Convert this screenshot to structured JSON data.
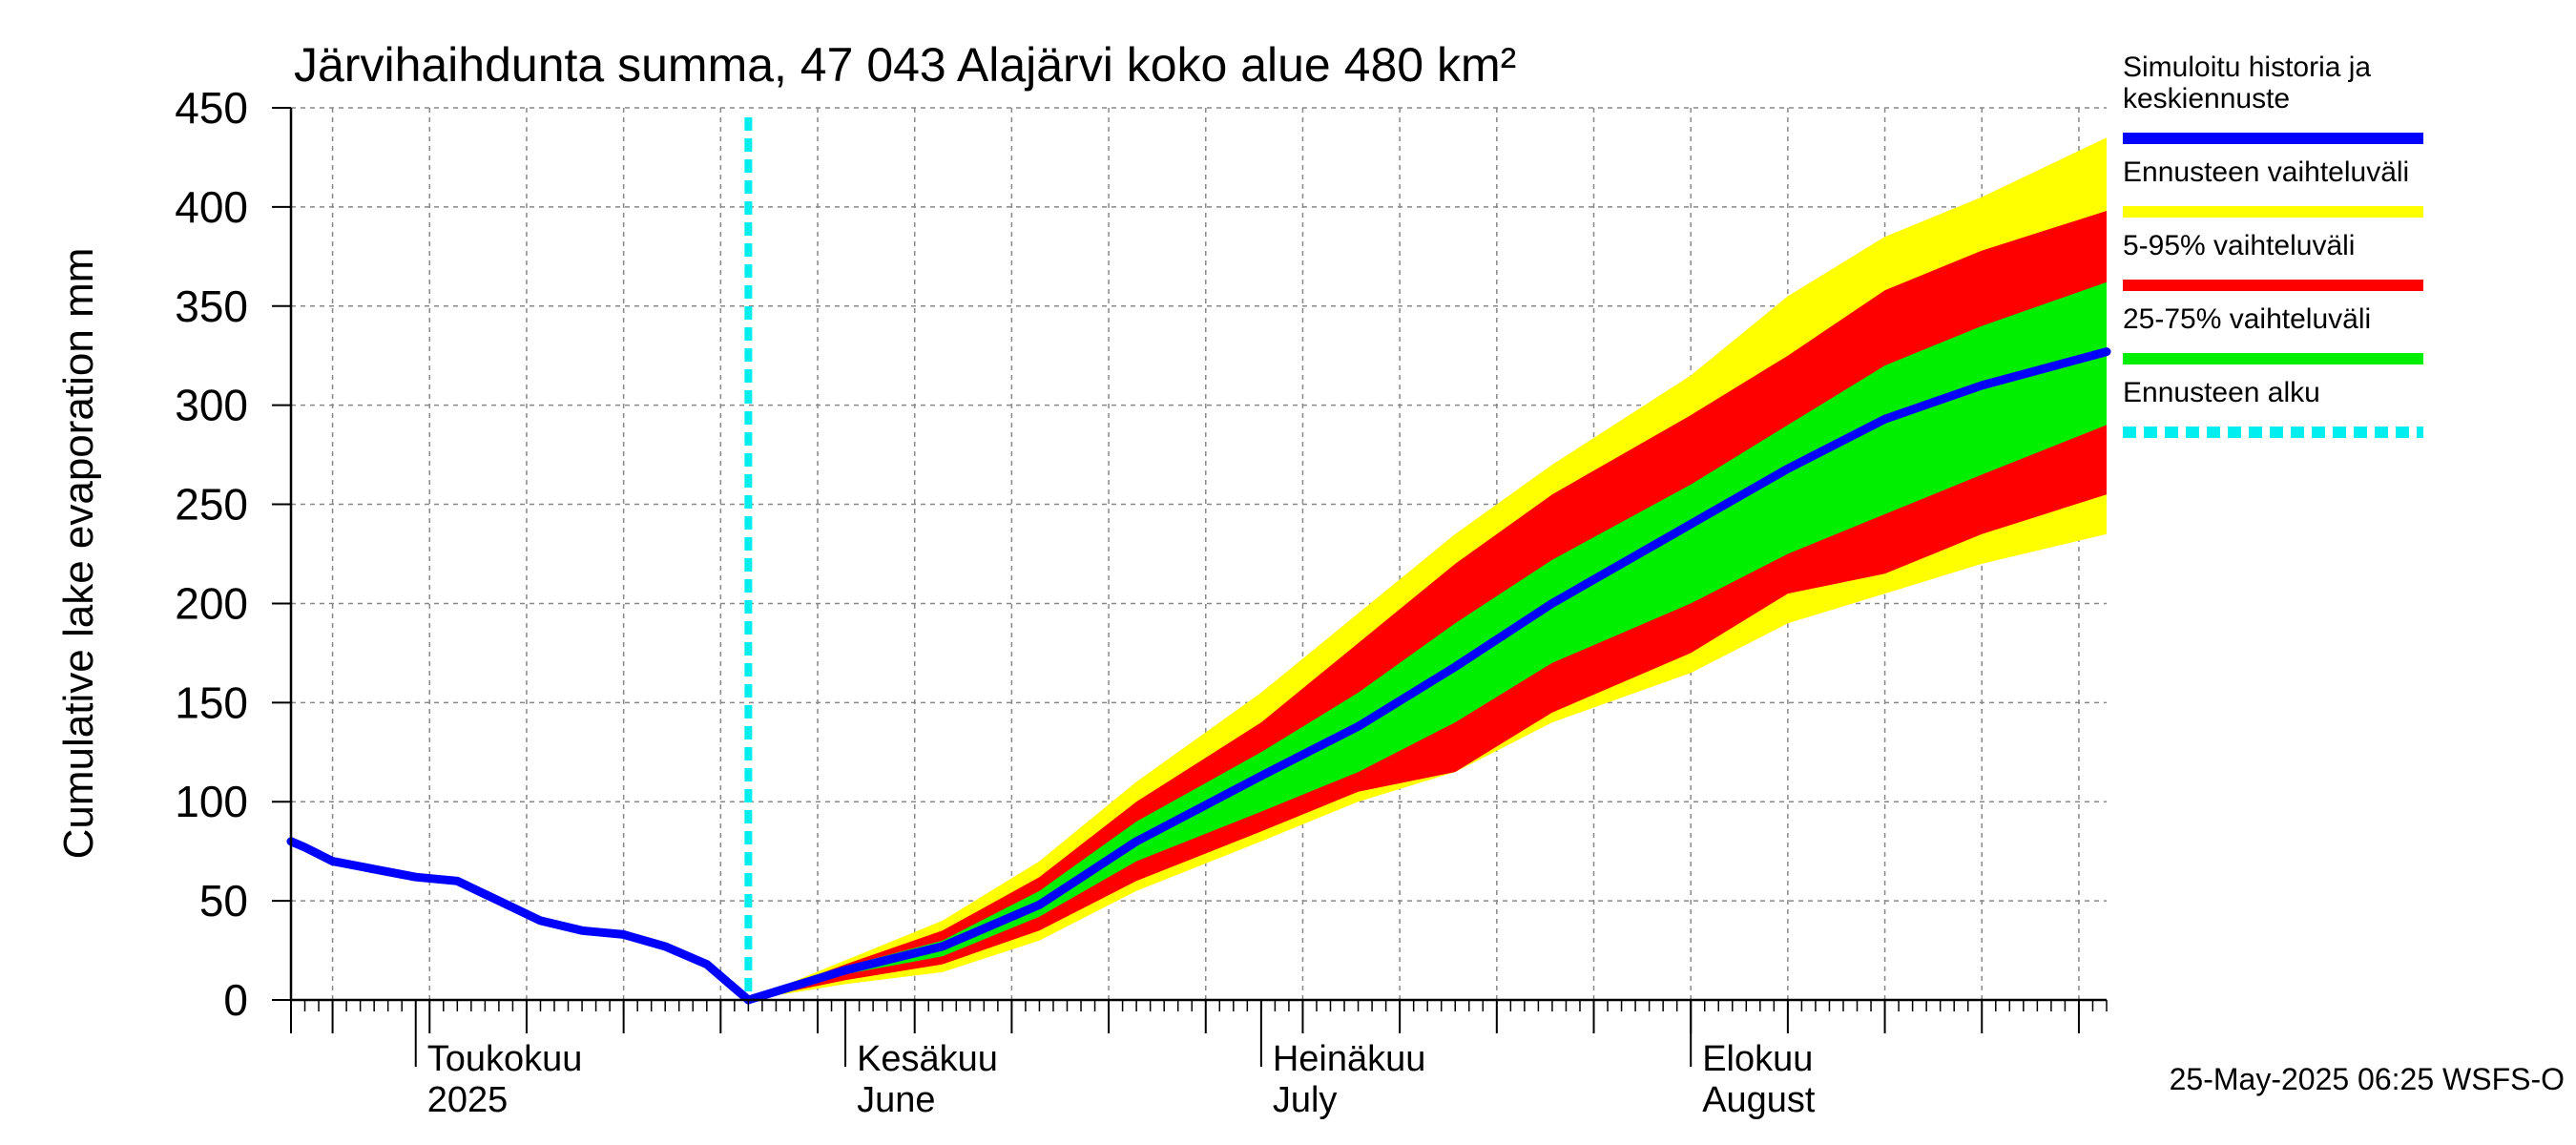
{
  "chart_data": {
    "type": "area",
    "title": "Järvihaihdunta summa, 47 043 Alajärvi koko alue 480 km²",
    "ylabel": "Cumulative lake evaporation   mm",
    "ylim": [
      0,
      450
    ],
    "y_ticks": [
      "0",
      "50",
      "100",
      "150",
      "200",
      "250",
      "300",
      "350",
      "400",
      "450"
    ],
    "x_range": [
      "2025-04-22",
      "2025-08-31"
    ],
    "x_month_labels": [
      {
        "date": "2025-05-01",
        "line1": "Toukokuu",
        "line2": "2025"
      },
      {
        "date": "2025-06-01",
        "line1": "Kesäkuu",
        "line2": "June"
      },
      {
        "date": "2025-07-01",
        "line1": "Heinäkuu",
        "line2": "July"
      },
      {
        "date": "2025-08-01",
        "line1": "Elokuu",
        "line2": "August"
      }
    ],
    "grid": true,
    "forecast_start": "2025-05-25",
    "legend_placement": "right",
    "legend": [
      {
        "key": "history",
        "label_lines": [
          "Simuloitu historia ja",
          "keskiennuste"
        ],
        "color": "#0000ff",
        "style": "solid"
      },
      {
        "key": "range_full",
        "label_lines": [
          "Ennusteen vaihteluväli"
        ],
        "color": "#ffff00",
        "style": "solid"
      },
      {
        "key": "range_5_95",
        "label_lines": [
          "5-95% vaihteluväli"
        ],
        "color": "#ff0000",
        "style": "solid"
      },
      {
        "key": "range_25_75",
        "label_lines": [
          "25-75% vaihteluväli"
        ],
        "color": "#00ee00",
        "style": "solid"
      },
      {
        "key": "forecast_start",
        "label_lines": [
          "Ennusteen alku"
        ],
        "color": "#00eeee",
        "style": "dashed"
      }
    ],
    "series": {
      "history": {
        "x": [
          "2025-04-22",
          "2025-04-23",
          "2025-04-25",
          "2025-04-28",
          "2025-05-01",
          "2025-05-04",
          "2025-05-07",
          "2025-05-10",
          "2025-05-13",
          "2025-05-16",
          "2025-05-19",
          "2025-05-22",
          "2025-05-25"
        ],
        "y": [
          80,
          77,
          70,
          66,
          62,
          60,
          50,
          40,
          35,
          33,
          27,
          18,
          0
        ]
      },
      "median": {
        "x": [
          "2025-05-25",
          "2025-06-01",
          "2025-06-08",
          "2025-06-15",
          "2025-06-22",
          "2025-07-01",
          "2025-07-08",
          "2025-07-15",
          "2025-07-22",
          "2025-08-01",
          "2025-08-08",
          "2025-08-15",
          "2025-08-22",
          "2025-08-31"
        ],
        "y": [
          0,
          15,
          27,
          48,
          80,
          113,
          138,
          168,
          200,
          240,
          268,
          293,
          310,
          327
        ]
      },
      "band_25_75": {
        "x": [
          "2025-05-25",
          "2025-06-01",
          "2025-06-08",
          "2025-06-15",
          "2025-06-22",
          "2025-07-01",
          "2025-07-08",
          "2025-07-15",
          "2025-07-22",
          "2025-08-01",
          "2025-08-08",
          "2025-08-15",
          "2025-08-22",
          "2025-08-31"
        ],
        "lower": [
          0,
          13,
          22,
          42,
          70,
          95,
          115,
          140,
          170,
          200,
          225,
          245,
          265,
          290
        ],
        "upper": [
          0,
          17,
          30,
          55,
          90,
          125,
          155,
          190,
          222,
          260,
          290,
          320,
          340,
          362
        ]
      },
      "band_5_95": {
        "x": [
          "2025-05-25",
          "2025-06-01",
          "2025-06-08",
          "2025-06-15",
          "2025-06-22",
          "2025-07-01",
          "2025-07-08",
          "2025-07-15",
          "2025-07-22",
          "2025-08-01",
          "2025-08-08",
          "2025-08-15",
          "2025-08-22",
          "2025-08-31"
        ],
        "lower": [
          0,
          10,
          18,
          35,
          60,
          85,
          105,
          115,
          145,
          175,
          205,
          215,
          235,
          255
        ],
        "upper": [
          0,
          18,
          35,
          62,
          100,
          140,
          180,
          220,
          255,
          295,
          325,
          358,
          378,
          398
        ]
      },
      "band_full": {
        "x": [
          "2025-05-25",
          "2025-06-01",
          "2025-06-08",
          "2025-06-15",
          "2025-06-22",
          "2025-07-01",
          "2025-07-08",
          "2025-07-15",
          "2025-07-22",
          "2025-08-01",
          "2025-08-08",
          "2025-08-15",
          "2025-08-22",
          "2025-08-31"
        ],
        "lower": [
          0,
          8,
          14,
          30,
          55,
          80,
          100,
          115,
          140,
          165,
          190,
          205,
          220,
          235
        ],
        "upper": [
          0,
          20,
          40,
          70,
          110,
          155,
          195,
          235,
          270,
          315,
          355,
          385,
          405,
          435
        ]
      }
    }
  },
  "footer_text": "25-May-2025 06:25 WSFS-O"
}
